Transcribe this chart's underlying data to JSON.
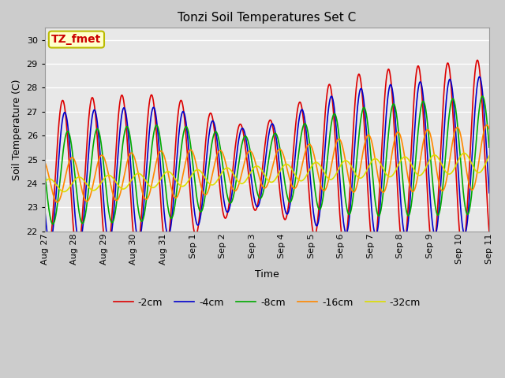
{
  "title": "Tonzi Soil Temperatures Set C",
  "xlabel": "Time",
  "ylabel": "Soil Temperature (C)",
  "ylim": [
    22.0,
    30.5
  ],
  "yticks": [
    22.0,
    23.0,
    24.0,
    25.0,
    26.0,
    27.0,
    28.0,
    29.0,
    30.0
  ],
  "annotation_text": "TZ_fmet",
  "annotation_bg": "#ffffcc",
  "annotation_fg": "#cc0000",
  "annotation_border": "#bbbb00",
  "legend": [
    "-2cm",
    "-4cm",
    "-8cm",
    "-16cm",
    "-32cm"
  ],
  "colors": [
    "#dd0000",
    "#0000cc",
    "#00aa00",
    "#ff8800",
    "#dddd00"
  ],
  "xtick_labels": [
    "Aug 27",
    "Aug 28",
    "Aug 29",
    "Aug 30",
    "Aug 31",
    "Sep 1",
    "Sep 2",
    "Sep 3",
    "Sep 4",
    "Sep 5",
    "Sep 6",
    "Sep 7",
    "Sep 8",
    "Sep 9",
    "Sep 10",
    "Sep 11"
  ],
  "xtick_positions": [
    0,
    1,
    2,
    3,
    4,
    5,
    6,
    7,
    8,
    9,
    10,
    11,
    12,
    13,
    14,
    15
  ]
}
